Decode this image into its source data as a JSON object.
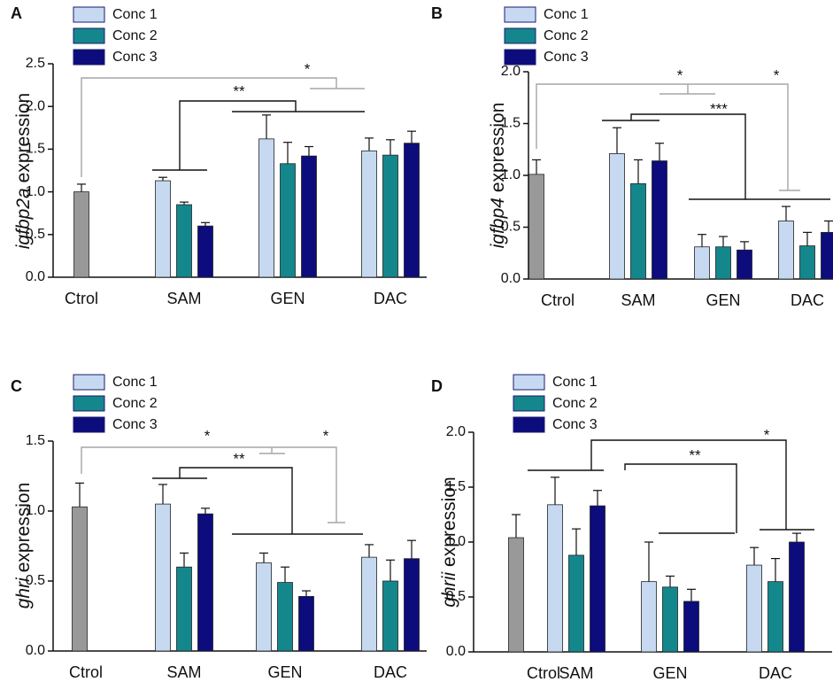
{
  "chart_data": [
    {
      "type": "bar",
      "panel": "A",
      "ylabel_gene": "igfbp2a",
      "ylabel_rest": "expression",
      "categories": [
        "Ctrol",
        "SAM",
        "GEN",
        "DAC"
      ],
      "control": {
        "color": "#999999",
        "value": 1.0,
        "error": 0.09
      },
      "series": [
        {
          "name": "Conc 1",
          "color": "#c6d9f1",
          "values": [
            null,
            1.13,
            1.62,
            1.48
          ],
          "errors": [
            null,
            0.04,
            0.28,
            0.15
          ]
        },
        {
          "name": "Conc 2",
          "color": "#14878d",
          "values": [
            null,
            0.85,
            1.33,
            1.43
          ],
          "errors": [
            null,
            0.03,
            0.25,
            0.18
          ]
        },
        {
          "name": "Conc 3",
          "color": "#0c0c7c",
          "values": [
            null,
            0.6,
            1.42,
            1.57
          ],
          "errors": [
            null,
            0.04,
            0.11,
            0.14
          ]
        }
      ],
      "ylim": [
        0,
        2.5
      ],
      "yticks": [
        {
          "value": 0,
          "label": "0.0"
        },
        0.5,
        {
          "value": 1,
          "label": "1.0"
        },
        1.5,
        {
          "value": 2,
          "label": "2.0"
        },
        2.5
      ],
      "annotations": [
        "*",
        "**"
      ]
    },
    {
      "type": "bar",
      "panel": "B",
      "ylabel_gene": "igfbp4",
      "ylabel_rest": "expression",
      "categories": [
        "Ctrol",
        "SAM",
        "GEN",
        "DAC"
      ],
      "control": {
        "color": "#999999",
        "value": 1.01,
        "error": 0.14
      },
      "series": [
        {
          "name": "Conc 1",
          "color": "#c6d9f1",
          "values": [
            null,
            1.21,
            0.31,
            0.56
          ],
          "errors": [
            null,
            0.25,
            0.12,
            0.14
          ]
        },
        {
          "name": "Conc 2",
          "color": "#14878d",
          "values": [
            null,
            0.92,
            0.31,
            0.32
          ],
          "errors": [
            null,
            0.23,
            0.1,
            0.13
          ]
        },
        {
          "name": "Conc 3",
          "color": "#0c0c7c",
          "values": [
            null,
            1.14,
            0.28,
            0.45
          ],
          "errors": [
            null,
            0.17,
            0.08,
            0.11
          ]
        }
      ],
      "ylim": [
        0,
        2.0
      ],
      "yticks": [
        {
          "value": 0,
          "label": "0.0"
        },
        0.5,
        {
          "value": 1,
          "label": "1.0"
        },
        1.5,
        {
          "value": 2,
          "label": "2.0"
        }
      ],
      "annotations": [
        "*",
        "*",
        "***"
      ]
    },
    {
      "type": "bar",
      "panel": "C",
      "ylabel_gene": "ghri",
      "ylabel_rest": "expression",
      "categories": [
        "Ctrol",
        "SAM",
        "GEN",
        "DAC"
      ],
      "control": {
        "color": "#999999",
        "value": 1.03,
        "error": 0.17
      },
      "series": [
        {
          "name": "Conc 1",
          "color": "#c6d9f1",
          "values": [
            null,
            1.05,
            0.63,
            0.67
          ],
          "errors": [
            null,
            0.14,
            0.07,
            0.09
          ]
        },
        {
          "name": "Conc 2",
          "color": "#14878d",
          "values": [
            null,
            0.6,
            0.49,
            0.5
          ],
          "errors": [
            null,
            0.1,
            0.11,
            0.15
          ]
        },
        {
          "name": "Conc 3",
          "color": "#0c0c7c",
          "values": [
            null,
            0.98,
            0.39,
            0.66
          ],
          "errors": [
            null,
            0.04,
            0.04,
            0.13
          ]
        }
      ],
      "ylim": [
        0,
        1.5
      ],
      "yticks": [
        {
          "value": 0,
          "label": "0.0"
        },
        0.5,
        {
          "value": 1,
          "label": "1.0"
        },
        1.5
      ],
      "annotations": [
        "*",
        "*",
        "**"
      ]
    },
    {
      "type": "bar",
      "panel": "D",
      "ylabel_gene": "ghrii",
      "ylabel_rest": "expression",
      "categories": [
        "Ctrol",
        "SAM",
        "GEN",
        "DAC"
      ],
      "control": {
        "color": "#999999",
        "value": 1.04,
        "error": 0.21
      },
      "series": [
        {
          "name": "Conc 1",
          "color": "#c6d9f1",
          "values": [
            null,
            1.34,
            0.64,
            0.79
          ],
          "errors": [
            null,
            0.25,
            0.36,
            0.16
          ]
        },
        {
          "name": "Conc 2",
          "color": "#14878d",
          "values": [
            null,
            0.88,
            0.59,
            0.64
          ],
          "errors": [
            null,
            0.24,
            0.1,
            0.21
          ]
        },
        {
          "name": "Conc 3",
          "color": "#0c0c7c",
          "values": [
            null,
            1.33,
            0.46,
            1.0
          ],
          "errors": [
            null,
            0.14,
            0.11,
            0.08
          ]
        }
      ],
      "ylim": [
        0,
        2.0
      ],
      "yticks": [
        {
          "value": 0,
          "label": "0.0"
        },
        0.5,
        {
          "value": 1,
          "label": "1.0"
        },
        1.5,
        {
          "value": 2,
          "label": "2.0"
        }
      ],
      "annotations": [
        "**",
        "*"
      ]
    }
  ]
}
